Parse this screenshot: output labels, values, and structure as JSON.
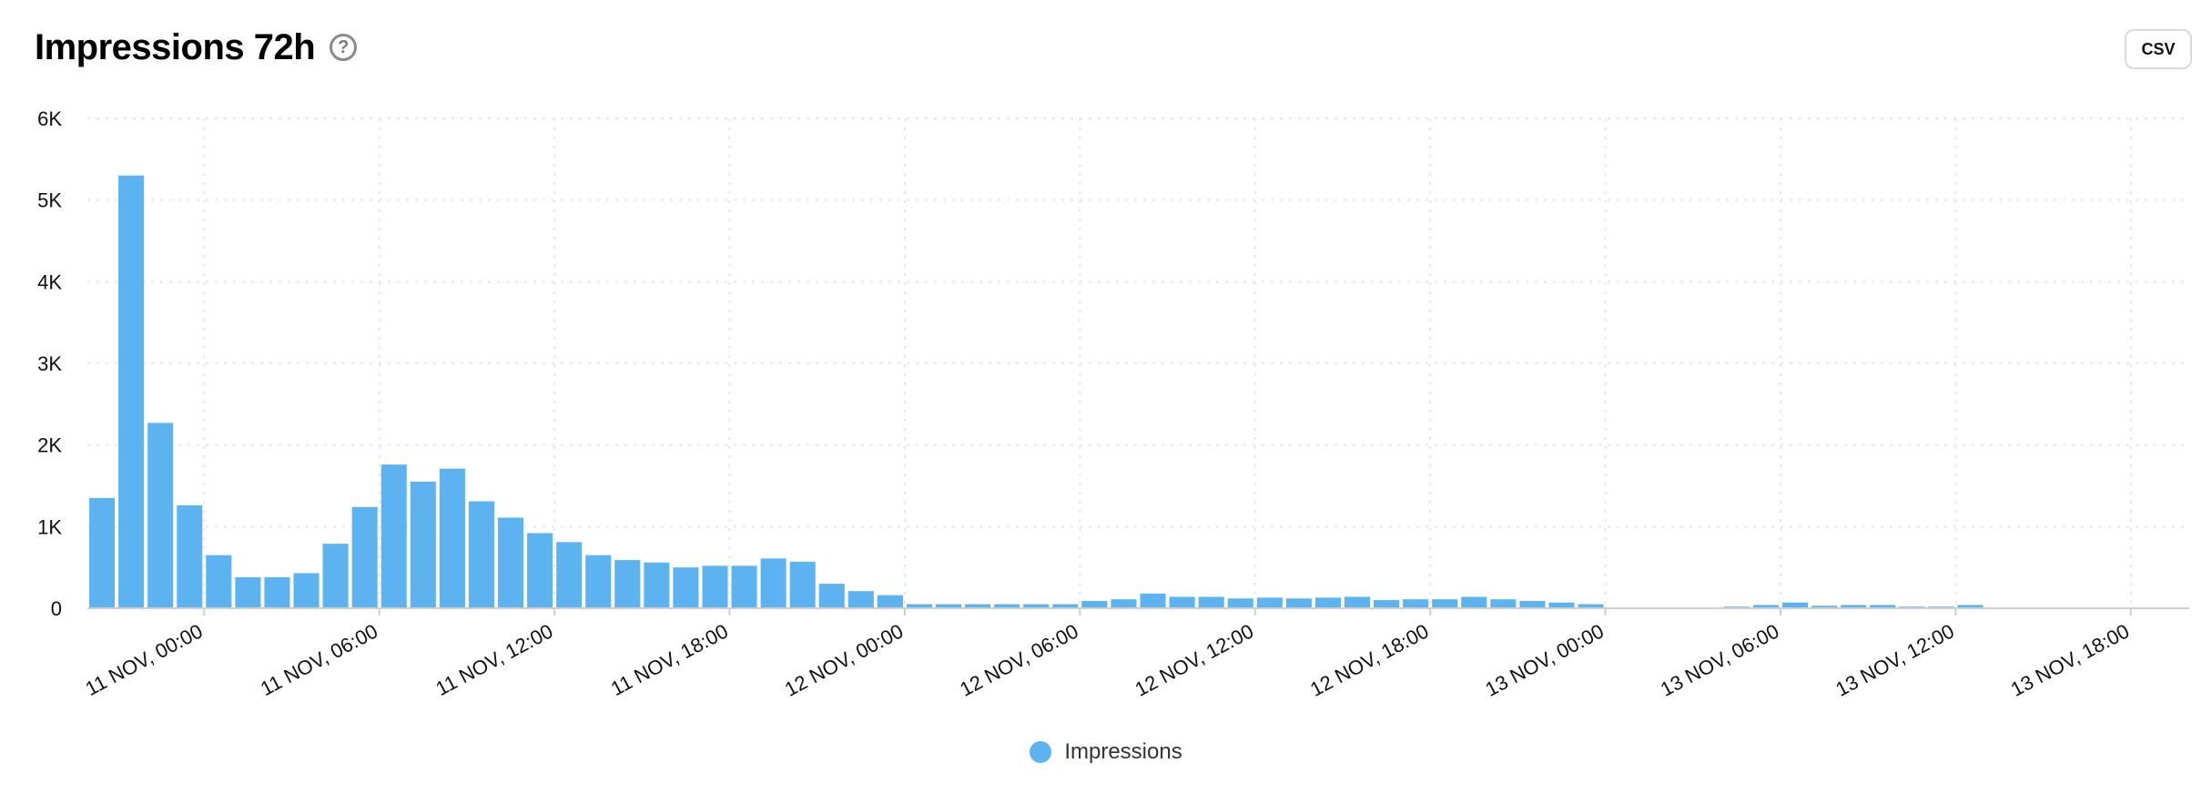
{
  "header": {
    "title": "Impressions 72h",
    "help_icon": "help-circle-icon"
  },
  "toolbar": {
    "csv_label": "CSV"
  },
  "colors": {
    "bar": "#5cb3f0",
    "grid": "#e6e6e6",
    "axis": "#cfcfcf",
    "text": "#111111"
  },
  "chart_data": {
    "type": "bar",
    "title": "Impressions 72h",
    "xlabel": "",
    "ylabel": "",
    "ylim": [
      0,
      6000
    ],
    "yticks": [
      0,
      1000,
      2000,
      3000,
      4000,
      5000,
      6000
    ],
    "ytick_labels": [
      "0",
      "1K",
      "2K",
      "3K",
      "4K",
      "5K",
      "6K"
    ],
    "xtick_labels": [
      "11 NOV, 00:00",
      "11 NOV, 06:00",
      "11 NOV, 12:00",
      "11 NOV, 18:00",
      "12 NOV, 00:00",
      "12 NOV, 06:00",
      "12 NOV, 12:00",
      "12 NOV, 18:00",
      "13 NOV, 00:00",
      "13 NOV, 06:00",
      "13 NOV, 12:00",
      "13 NOV, 18:00"
    ],
    "x_start": "10 NOV, 20:00",
    "x_end": "13 NOV, 20:00",
    "interval": "1h",
    "grid": true,
    "legend_position": "bottom-center",
    "series": [
      {
        "name": "Impressions",
        "color": "#5cb3f0",
        "values": [
          1350,
          5300,
          2270,
          1260,
          650,
          380,
          380,
          430,
          790,
          1240,
          1760,
          1550,
          1710,
          1310,
          1110,
          920,
          810,
          650,
          590,
          560,
          500,
          520,
          520,
          610,
          570,
          300,
          210,
          160,
          50,
          50,
          50,
          50,
          50,
          50,
          90,
          110,
          180,
          140,
          140,
          120,
          130,
          120,
          130,
          140,
          100,
          110,
          110,
          140,
          110,
          90,
          70,
          50,
          0,
          0,
          0,
          0,
          20,
          40,
          70,
          30,
          40,
          40,
          20,
          20,
          40,
          0,
          0,
          0,
          0,
          0,
          0,
          0
        ]
      }
    ]
  }
}
